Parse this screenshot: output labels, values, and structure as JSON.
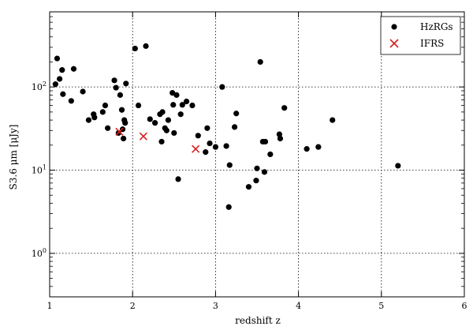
{
  "chart_data": {
    "type": "scatter",
    "xlabel": "redshift z",
    "ylabel": "S3.6 μm [μJy]",
    "xlim": [
      1,
      6
    ],
    "ylim": [
      0.3,
      800
    ],
    "yscale": "log",
    "grid": true,
    "legend": "top-right",
    "x_ticks": [
      1,
      2,
      3,
      4,
      5,
      6
    ],
    "y_ticks": [
      1,
      10,
      100
    ],
    "series": [
      {
        "name": "HzRGs",
        "marker": "circle",
        "color": "#000000",
        "points": [
          [
            1.07,
            108
          ],
          [
            1.09,
            220
          ],
          [
            1.12,
            125
          ],
          [
            1.15,
            160
          ],
          [
            1.16,
            82
          ],
          [
            1.26,
            68
          ],
          [
            1.29,
            165
          ],
          [
            1.4,
            88
          ],
          [
            1.47,
            40
          ],
          [
            1.53,
            47
          ],
          [
            1.54,
            43
          ],
          [
            1.64,
            50
          ],
          [
            1.67,
            60
          ],
          [
            1.7,
            32
          ],
          [
            1.78,
            120
          ],
          [
            1.8,
            98
          ],
          [
            1.83,
            28
          ],
          [
            1.85,
            80
          ],
          [
            1.87,
            53
          ],
          [
            1.88,
            31
          ],
          [
            1.89,
            24
          ],
          [
            1.9,
            40
          ],
          [
            1.91,
            37
          ],
          [
            1.92,
            110
          ],
          [
            2.03,
            290
          ],
          [
            2.07,
            60
          ],
          [
            2.16,
            310
          ],
          [
            2.21,
            41
          ],
          [
            2.27,
            37
          ],
          [
            2.33,
            47
          ],
          [
            2.35,
            22
          ],
          [
            2.36,
            50
          ],
          [
            2.39,
            32
          ],
          [
            2.41,
            30
          ],
          [
            2.43,
            40
          ],
          [
            2.48,
            85
          ],
          [
            2.49,
            61
          ],
          [
            2.5,
            28
          ],
          [
            2.53,
            80
          ],
          [
            2.55,
            7.8
          ],
          [
            2.58,
            47
          ],
          [
            2.6,
            61
          ],
          [
            2.65,
            67
          ],
          [
            2.72,
            60
          ],
          [
            2.79,
            26
          ],
          [
            2.88,
            16.5
          ],
          [
            2.9,
            32
          ],
          [
            2.93,
            21
          ],
          [
            3.0,
            19
          ],
          [
            3.08,
            100
          ],
          [
            3.13,
            19.5
          ],
          [
            3.16,
            3.6
          ],
          [
            3.17,
            11.5
          ],
          [
            3.23,
            33
          ],
          [
            3.25,
            48
          ],
          [
            3.4,
            6.3
          ],
          [
            3.49,
            7.5
          ],
          [
            3.5,
            10.5
          ],
          [
            3.54,
            200
          ],
          [
            3.57,
            22
          ],
          [
            3.59,
            9.5
          ],
          [
            3.6,
            22
          ],
          [
            3.66,
            15.5
          ],
          [
            3.77,
            27
          ],
          [
            3.78,
            24
          ],
          [
            3.83,
            56
          ],
          [
            4.1,
            18
          ],
          [
            4.24,
            19
          ],
          [
            4.41,
            40
          ],
          [
            5.2,
            11.3
          ]
        ]
      },
      {
        "name": "IFRS",
        "marker": "x",
        "color": "#d62020",
        "points": [
          [
            1.84,
            29
          ],
          [
            2.13,
            25.5
          ],
          [
            2.76,
            18
          ]
        ]
      }
    ]
  }
}
